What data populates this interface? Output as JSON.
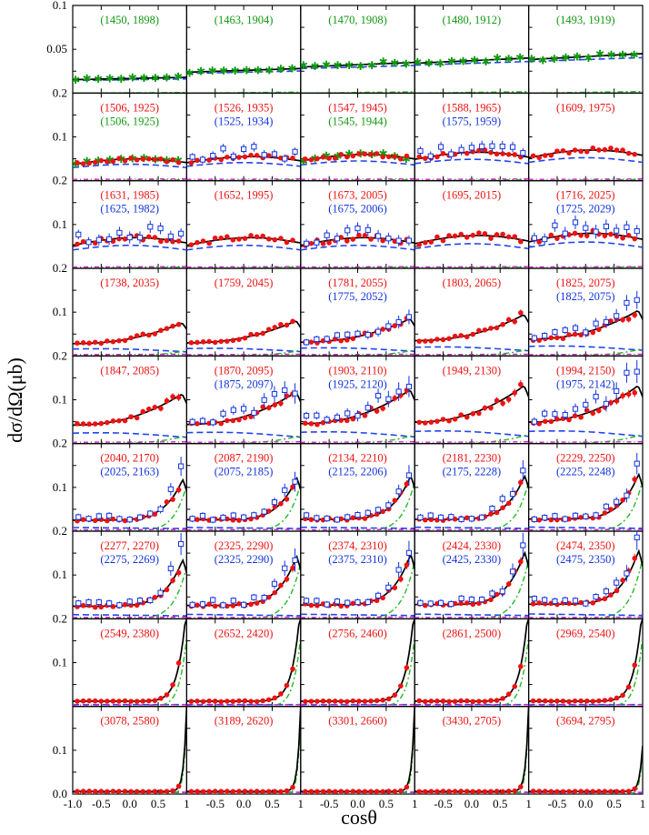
{
  "chart_data": {
    "type": "scatter",
    "title": "",
    "xlabel": "cosθ",
    "ylabel": "dσ/dΩ(μb)",
    "xlim": [
      -1.0,
      1.0
    ],
    "x_tick_labels": [
      "-1.0",
      "-0.5",
      "0.0",
      "0.5",
      "1"
    ],
    "x_tick_values": [
      -1.0,
      -0.5,
      0.0,
      0.5,
      1.0
    ],
    "rows": [
      {
        "ylim": [
          0,
          0.1
        ],
        "y_ticks": [
          {
            "v": 0.1,
            "label": "0.1"
          },
          {
            "v": 0.05,
            "label": "0.05"
          }
        ]
      },
      {
        "ylim": [
          0,
          0.2
        ],
        "y_ticks": [
          {
            "v": 0.2,
            "label": "0.2"
          },
          {
            "v": 0.1,
            "label": "0.1"
          }
        ]
      },
      {
        "ylim": [
          0,
          0.2
        ],
        "y_ticks": [
          {
            "v": 0.2,
            "label": "0.2"
          },
          {
            "v": 0.1,
            "label": "0.1"
          }
        ]
      },
      {
        "ylim": [
          0,
          0.2
        ],
        "y_ticks": [
          {
            "v": 0.2,
            "label": "0.2"
          },
          {
            "v": 0.1,
            "label": "0.1"
          }
        ]
      },
      {
        "ylim": [
          0,
          0.2
        ],
        "y_ticks": [
          {
            "v": 0.2,
            "label": "0.2"
          },
          {
            "v": 0.1,
            "label": "0.1"
          }
        ]
      },
      {
        "ylim": [
          0,
          0.2
        ],
        "y_ticks": [
          {
            "v": 0.2,
            "label": "0.2"
          },
          {
            "v": 0.1,
            "label": "0.1"
          }
        ]
      },
      {
        "ylim": [
          0,
          0.2
        ],
        "y_ticks": [
          {
            "v": 0.2,
            "label": "0.2"
          },
          {
            "v": 0.1,
            "label": "0.1"
          }
        ]
      },
      {
        "ylim": [
          0,
          0.2
        ],
        "y_ticks": [
          {
            "v": 0.2,
            "label": "0.2"
          },
          {
            "v": 0.1,
            "label": "0.1"
          }
        ]
      },
      {
        "ylim": [
          0,
          0.2
        ],
        "y_ticks": [
          {
            "v": 0.1,
            "label": "0.1"
          },
          {
            "v": 0.0,
            "label": "0.0"
          }
        ]
      }
    ],
    "colors": {
      "red": "#ee1111",
      "blue": "#1133dd",
      "green": "#119911",
      "theory": "#000000",
      "dash": "#2244ee",
      "dashdot": "#22bb22",
      "magenta": "#cc22cc"
    },
    "panels": [
      {
        "labels": [
          {
            "text": "(1450, 1898)",
            "color": "green"
          }
        ],
        "kind": "green-const",
        "level": 0.018
      },
      {
        "labels": [
          {
            "text": "(1463, 1904)",
            "color": "green"
          }
        ],
        "kind": "green-const",
        "level": 0.028
      },
      {
        "labels": [
          {
            "text": "(1470, 1908)",
            "color": "green"
          }
        ],
        "kind": "green-const",
        "level": 0.035
      },
      {
        "labels": [
          {
            "text": "(1480, 1912)",
            "color": "green"
          }
        ],
        "kind": "green-const",
        "level": 0.04
      },
      {
        "labels": [
          {
            "text": "(1493, 1919)",
            "color": "green"
          }
        ],
        "kind": "green-const",
        "level": 0.045
      },
      {
        "labels": [
          {
            "text": "(1506, 1925)",
            "color": "red"
          },
          {
            "text": "(1506, 1925)",
            "color": "green"
          }
        ],
        "kind": "flat",
        "level": 0.05
      },
      {
        "labels": [
          {
            "text": "(1526, 1935)",
            "color": "red"
          },
          {
            "text": "(1525, 1934)",
            "color": "blue"
          }
        ],
        "kind": "flat",
        "level": 0.055
      },
      {
        "labels": [
          {
            "text": "(1547, 1945)",
            "color": "red"
          },
          {
            "text": "(1545, 1944)",
            "color": "green"
          }
        ],
        "kind": "flat",
        "level": 0.06
      },
      {
        "labels": [
          {
            "text": "(1588, 1965)",
            "color": "red"
          },
          {
            "text": "(1575, 1959)",
            "color": "blue"
          }
        ],
        "kind": "flat",
        "level": 0.065
      },
      {
        "labels": [
          {
            "text": "(1609, 1975)",
            "color": "red"
          }
        ],
        "kind": "flat",
        "level": 0.07
      },
      {
        "labels": [
          {
            "text": "(1631, 1985)",
            "color": "red"
          },
          {
            "text": "(1625, 1982)",
            "color": "blue"
          }
        ],
        "kind": "flat",
        "level": 0.07
      },
      {
        "labels": [
          {
            "text": "(1652, 1995)",
            "color": "red"
          }
        ],
        "kind": "flat",
        "level": 0.07
      },
      {
        "labels": [
          {
            "text": "(1673, 2005)",
            "color": "red"
          },
          {
            "text": "(1675, 2006)",
            "color": "blue"
          }
        ],
        "kind": "flat",
        "level": 0.07
      },
      {
        "labels": [
          {
            "text": "(1695, 2015)",
            "color": "red"
          }
        ],
        "kind": "flat",
        "level": 0.075
      },
      {
        "labels": [
          {
            "text": "(1716, 2025)",
            "color": "red"
          },
          {
            "text": "(1725, 2029)",
            "color": "blue"
          }
        ],
        "kind": "flat",
        "level": 0.08
      },
      {
        "labels": [
          {
            "text": "(1738, 2035)",
            "color": "red"
          }
        ],
        "kind": "rise",
        "level": 0.08
      },
      {
        "labels": [
          {
            "text": "(1759, 2045)",
            "color": "red"
          }
        ],
        "kind": "rise",
        "level": 0.085
      },
      {
        "labels": [
          {
            "text": "(1781, 2055)",
            "color": "red"
          },
          {
            "text": "(1775, 2052)",
            "color": "blue"
          }
        ],
        "kind": "rise",
        "level": 0.09
      },
      {
        "labels": [
          {
            "text": "(1803, 2065)",
            "color": "red"
          }
        ],
        "kind": "rise",
        "level": 0.1
      },
      {
        "labels": [
          {
            "text": "(1825, 2075)",
            "color": "red"
          },
          {
            "text": "(1825, 2075)",
            "color": "blue"
          }
        ],
        "kind": "rise",
        "level": 0.11
      },
      {
        "labels": [
          {
            "text": "(1847, 2085)",
            "color": "red"
          }
        ],
        "kind": "rise",
        "level": 0.12
      },
      {
        "labels": [
          {
            "text": "(1870, 2095)",
            "color": "red"
          },
          {
            "text": "(1875, 2097)",
            "color": "blue"
          }
        ],
        "kind": "rise",
        "level": 0.125
      },
      {
        "labels": [
          {
            "text": "(1903, 2110)",
            "color": "red"
          },
          {
            "text": "(1925, 2120)",
            "color": "blue"
          }
        ],
        "kind": "rise",
        "level": 0.13
      },
      {
        "labels": [
          {
            "text": "(1949, 2130)",
            "color": "red"
          }
        ],
        "kind": "rise",
        "level": 0.14
      },
      {
        "labels": [
          {
            "text": "(1994, 2150)",
            "color": "red"
          },
          {
            "text": "(1975, 2142)",
            "color": "blue"
          }
        ],
        "kind": "rise",
        "level": 0.14
      },
      {
        "labels": [
          {
            "text": "(2040, 2170)",
            "color": "red"
          },
          {
            "text": "(2025, 2163)",
            "color": "blue"
          }
        ],
        "kind": "forward",
        "level": 0.14
      },
      {
        "labels": [
          {
            "text": "(2087, 2190)",
            "color": "red"
          },
          {
            "text": "(2075, 2185)",
            "color": "blue"
          }
        ],
        "kind": "forward",
        "level": 0.145
      },
      {
        "labels": [
          {
            "text": "(2134, 2210)",
            "color": "red"
          },
          {
            "text": "(2125, 2206)",
            "color": "blue"
          }
        ],
        "kind": "forward",
        "level": 0.15
      },
      {
        "labels": [
          {
            "text": "(2181, 2230)",
            "color": "red"
          },
          {
            "text": "(2175, 2228)",
            "color": "blue"
          }
        ],
        "kind": "forward",
        "level": 0.15
      },
      {
        "labels": [
          {
            "text": "(2229, 2250)",
            "color": "red"
          },
          {
            "text": "(2225, 2248)",
            "color": "blue"
          }
        ],
        "kind": "forward",
        "level": 0.155
      },
      {
        "labels": [
          {
            "text": "(2277, 2270)",
            "color": "red"
          },
          {
            "text": "(2275, 2269)",
            "color": "blue"
          }
        ],
        "kind": "forward",
        "level": 0.16
      },
      {
        "labels": [
          {
            "text": "(2325, 2290)",
            "color": "red"
          },
          {
            "text": "(2325, 2290)",
            "color": "blue"
          }
        ],
        "kind": "forward",
        "level": 0.17
      },
      {
        "labels": [
          {
            "text": "(2374, 2310)",
            "color": "red"
          },
          {
            "text": "(2375, 2310)",
            "color": "blue"
          }
        ],
        "kind": "forward",
        "level": 0.175
      },
      {
        "labels": [
          {
            "text": "(2424, 2330)",
            "color": "red"
          },
          {
            "text": "(2425, 2330)",
            "color": "blue"
          }
        ],
        "kind": "forward",
        "level": 0.18
      },
      {
        "labels": [
          {
            "text": "(2474, 2350)",
            "color": "red"
          },
          {
            "text": "(2475, 2350)",
            "color": "blue"
          }
        ],
        "kind": "forward",
        "level": 0.185
      },
      {
        "labels": [
          {
            "text": "(2549, 2380)",
            "color": "red"
          }
        ],
        "kind": "peak",
        "level": 0.2
      },
      {
        "labels": [
          {
            "text": "(2652, 2420)",
            "color": "red"
          }
        ],
        "kind": "peak",
        "level": 0.2
      },
      {
        "labels": [
          {
            "text": "(2756, 2460)",
            "color": "red"
          }
        ],
        "kind": "peak",
        "level": 0.2
      },
      {
        "labels": [
          {
            "text": "(2861, 2500)",
            "color": "red"
          }
        ],
        "kind": "peak",
        "level": 0.2
      },
      {
        "labels": [
          {
            "text": "(2969, 2540)",
            "color": "red"
          }
        ],
        "kind": "peak",
        "level": 0.2
      },
      {
        "labels": [
          {
            "text": "(3078, 2580)",
            "color": "red"
          }
        ],
        "kind": "sharp",
        "level": 0.2
      },
      {
        "labels": [
          {
            "text": "(3189, 2620)",
            "color": "red"
          }
        ],
        "kind": "sharp",
        "level": 0.2
      },
      {
        "labels": [
          {
            "text": "(3301, 2660)",
            "color": "red"
          }
        ],
        "kind": "sharp",
        "level": 0.2
      },
      {
        "labels": [
          {
            "text": "(3430, 2705)",
            "color": "red"
          }
        ],
        "kind": "sharp",
        "level": 0.2
      },
      {
        "labels": [
          {
            "text": "(3694, 2795)",
            "color": "red"
          }
        ],
        "kind": "sharp",
        "level": 0.11
      }
    ]
  }
}
